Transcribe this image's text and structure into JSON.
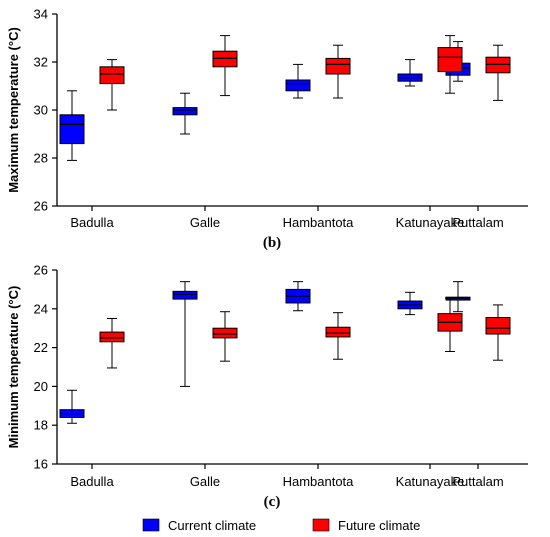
{
  "colors": {
    "current": "#0000ff",
    "future": "#ff0000",
    "axis": "#000000"
  },
  "legend": [
    {
      "label": "Current climate",
      "color": "#0000ff"
    },
    {
      "label": "Future climate",
      "color": "#ff0000"
    }
  ],
  "chart_data": [
    {
      "type": "box",
      "panel_label": "(b)",
      "ylabel": "Maximum temperature (°C)",
      "ylim": [
        26,
        34
      ],
      "yticks": [
        26,
        28,
        30,
        32,
        34
      ],
      "categories": [
        "Badulla",
        "Galle",
        "Hambantota",
        "Katunayake",
        "Puttalam"
      ],
      "series": [
        {
          "name": "Current climate",
          "boxes": [
            {
              "min": 27.9,
              "q1": 28.6,
              "median": 29.4,
              "q3": 29.8,
              "max": 30.8
            },
            {
              "min": 29.0,
              "q1": 29.8,
              "median": 30.0,
              "q3": 30.1,
              "max": 30.7
            },
            {
              "min": 30.5,
              "q1": 30.8,
              "median": 31.1,
              "q3": 31.25,
              "max": 31.9
            },
            {
              "min": 31.0,
              "q1": 31.2,
              "median": 31.35,
              "q3": 31.5,
              "max": 32.1
            },
            {
              "min": 31.2,
              "q1": 31.45,
              "median": 31.75,
              "q3": 31.95,
              "max": 32.85
            }
          ]
        },
        {
          "name": "Future climate",
          "boxes": [
            {
              "min": 30.0,
              "q1": 31.1,
              "median": 31.5,
              "q3": 31.8,
              "max": 32.1
            },
            {
              "min": 30.6,
              "q1": 31.8,
              "median": 32.15,
              "q3": 32.45,
              "max": 33.1
            },
            {
              "min": 30.5,
              "q1": 31.5,
              "median": 31.9,
              "q3": 32.15,
              "max": 32.7
            },
            {
              "min": 30.7,
              "q1": 31.6,
              "median": 32.2,
              "q3": 32.6,
              "max": 33.1
            },
            {
              "min": 30.4,
              "q1": 31.55,
              "median": 31.9,
              "q3": 32.2,
              "max": 32.7
            }
          ]
        }
      ]
    },
    {
      "type": "box",
      "panel_label": "(c)",
      "ylabel": "Minimum temperature (°C)",
      "ylim": [
        16,
        26
      ],
      "yticks": [
        16,
        18,
        20,
        22,
        24,
        26
      ],
      "categories": [
        "Badulla",
        "Galle",
        "Hambantota",
        "Katunayake",
        "Puttalam"
      ],
      "series": [
        {
          "name": "Current climate",
          "boxes": [
            {
              "min": 18.1,
              "q1": 18.4,
              "median": 18.6,
              "q3": 18.8,
              "max": 19.8
            },
            {
              "min": 20.0,
              "q1": 24.5,
              "median": 24.75,
              "q3": 24.9,
              "max": 25.4
            },
            {
              "min": 23.9,
              "q1": 24.3,
              "median": 24.65,
              "q3": 25.0,
              "max": 25.4
            },
            {
              "min": 23.7,
              "q1": 24.0,
              "median": 24.2,
              "q3": 24.4,
              "max": 24.85
            },
            {
              "min": 23.85,
              "q1": 24.45,
              "median": 24.55,
              "q3": 24.6,
              "max": 25.4
            }
          ]
        },
        {
          "name": "Future climate",
          "boxes": [
            {
              "min": 20.95,
              "q1": 22.3,
              "median": 22.5,
              "q3": 22.8,
              "max": 23.5
            },
            {
              "min": 21.3,
              "q1": 22.5,
              "median": 22.7,
              "q3": 23.0,
              "max": 23.85
            },
            {
              "min": 21.4,
              "q1": 22.55,
              "median": 22.75,
              "q3": 23.05,
              "max": 23.8
            },
            {
              "min": 21.8,
              "q1": 22.85,
              "median": 23.3,
              "q3": 23.75,
              "max": 24.55
            },
            {
              "min": 21.35,
              "q1": 22.7,
              "median": 23.0,
              "q3": 23.55,
              "max": 24.2
            }
          ]
        }
      ]
    }
  ]
}
